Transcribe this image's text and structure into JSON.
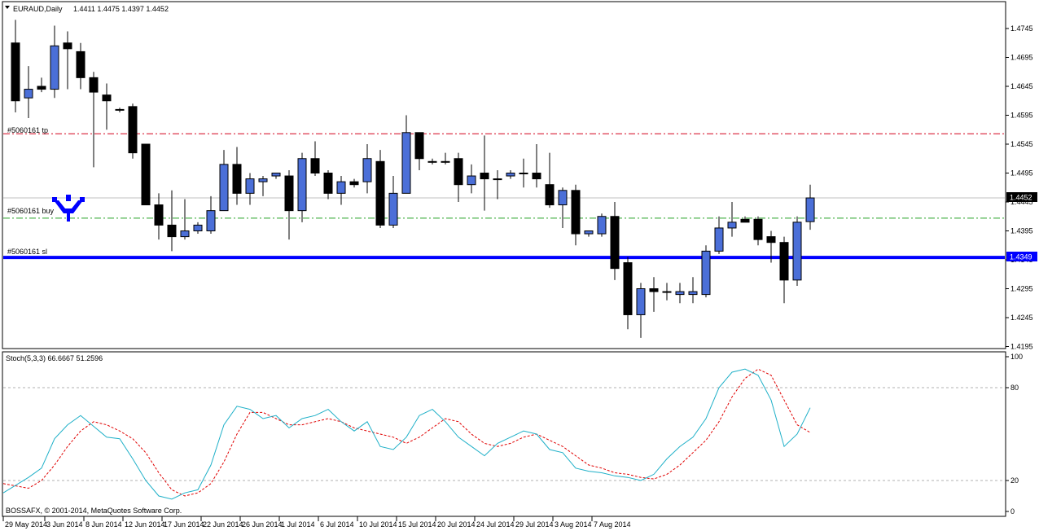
{
  "header": {
    "symbol": "EURAUD,Daily",
    "ohlc": "1.4411 1.4475 1.4397 1.4452"
  },
  "price_axis": {
    "ticks": [
      "1.4745",
      "1.4695",
      "1.4645",
      "1.4595",
      "1.4545",
      "1.4495",
      "1.4445",
      "1.4395",
      "1.4345",
      "1.4295",
      "1.4245",
      "1.4195"
    ],
    "current_price_label": "1.4452",
    "sl_price_label": "1.4349"
  },
  "order_lines": {
    "tp_label": "#5060161 tp",
    "buy_label": "#5060161 buy",
    "sl_label": "#5060161 sl",
    "tp_price": 1.4563,
    "buy_price": 1.4417,
    "sl_price": 1.4349
  },
  "colors": {
    "bull": "#4b6fd8",
    "bear": "#000000",
    "tp_line": "#d4001a",
    "buy_line": "#23a023",
    "sl_line": "#0000ff",
    "stoch_main": "#1fb0c8",
    "stoch_signal": "#e00000"
  },
  "stoch": {
    "label": "Stoch(5,3,3) 66.6667 51.2596",
    "ticks": [
      "100",
      "80",
      "20",
      "0"
    ]
  },
  "footer": {
    "copyright": "BOSSAFX, © 2001-2014, MetaQuotes Software Corp."
  },
  "time_axis": {
    "labels": [
      "29 May 2014",
      "3 Jun 2014",
      "8 Jun 2014",
      "12 Jun 2014",
      "17 Jun 2014",
      "22 Jun 2014",
      "26 Jun 2014",
      "1 Jul 2014",
      "6 Jul 2014",
      "10 Jul 2014",
      "15 Jul 2014",
      "20 Jul 2014",
      "24 Jul 2014",
      "29 Jul 2014",
      "3 Aug 2014",
      "7 Aug 2014"
    ]
  },
  "chart_data": {
    "type": "candlestick",
    "series": [
      {
        "o": 1.472,
        "h": 1.476,
        "l": 1.46,
        "c": 1.462
      },
      {
        "o": 1.4625,
        "h": 1.468,
        "l": 1.459,
        "c": 1.464
      },
      {
        "o": 1.4645,
        "h": 1.466,
        "l": 1.4635,
        "c": 1.464
      },
      {
        "o": 1.464,
        "h": 1.475,
        "l": 1.4625,
        "c": 1.4715
      },
      {
        "o": 1.472,
        "h": 1.474,
        "l": 1.464,
        "c": 1.471
      },
      {
        "o": 1.4705,
        "h": 1.472,
        "l": 1.464,
        "c": 1.466
      },
      {
        "o": 1.466,
        "h": 1.467,
        "l": 1.4505,
        "c": 1.4635
      },
      {
        "o": 1.463,
        "h": 1.465,
        "l": 1.457,
        "c": 1.462
      },
      {
        "o": 1.4605,
        "h": 1.4608,
        "l": 1.46,
        "c": 1.4605
      },
      {
        "o": 1.461,
        "h": 1.4615,
        "l": 1.452,
        "c": 1.453
      },
      {
        "o": 1.4545,
        "h": 1.4545,
        "l": 1.444,
        "c": 1.444
      },
      {
        "o": 1.444,
        "h": 1.446,
        "l": 1.438,
        "c": 1.4405
      },
      {
        "o": 1.4405,
        "h": 1.4465,
        "l": 1.436,
        "c": 1.4385
      },
      {
        "o": 1.4385,
        "h": 1.445,
        "l": 1.438,
        "c": 1.4395
      },
      {
        "o": 1.4395,
        "h": 1.441,
        "l": 1.439,
        "c": 1.4405
      },
      {
        "o": 1.4395,
        "h": 1.4455,
        "l": 1.439,
        "c": 1.443
      },
      {
        "o": 1.443,
        "h": 1.4535,
        "l": 1.443,
        "c": 1.451
      },
      {
        "o": 1.451,
        "h": 1.454,
        "l": 1.444,
        "c": 1.446
      },
      {
        "o": 1.446,
        "h": 1.4495,
        "l": 1.444,
        "c": 1.4485
      },
      {
        "o": 1.448,
        "h": 1.449,
        "l": 1.4455,
        "c": 1.4485
      },
      {
        "o": 1.449,
        "h": 1.4495,
        "l": 1.4485,
        "c": 1.4495
      },
      {
        "o": 1.449,
        "h": 1.45,
        "l": 1.438,
        "c": 1.443
      },
      {
        "o": 1.443,
        "h": 1.453,
        "l": 1.441,
        "c": 1.452
      },
      {
        "o": 1.452,
        "h": 1.455,
        "l": 1.449,
        "c": 1.4495
      },
      {
        "o": 1.4495,
        "h": 1.45,
        "l": 1.445,
        "c": 1.446
      },
      {
        "o": 1.446,
        "h": 1.449,
        "l": 1.444,
        "c": 1.448
      },
      {
        "o": 1.448,
        "h": 1.4485,
        "l": 1.447,
        "c": 1.4475
      },
      {
        "o": 1.448,
        "h": 1.4545,
        "l": 1.446,
        "c": 1.452
      },
      {
        "o": 1.4515,
        "h": 1.4535,
        "l": 1.44,
        "c": 1.4405
      },
      {
        "o": 1.4405,
        "h": 1.449,
        "l": 1.44,
        "c": 1.446
      },
      {
        "o": 1.446,
        "h": 1.4595,
        "l": 1.446,
        "c": 1.4565
      },
      {
        "o": 1.4565,
        "h": 1.4565,
        "l": 1.45,
        "c": 1.452
      },
      {
        "o": 1.4515,
        "h": 1.452,
        "l": 1.451,
        "c": 1.4515
      },
      {
        "o": 1.4515,
        "h": 1.453,
        "l": 1.451,
        "c": 1.4515
      },
      {
        "o": 1.452,
        "h": 1.453,
        "l": 1.4445,
        "c": 1.4475
      },
      {
        "o": 1.4475,
        "h": 1.451,
        "l": 1.446,
        "c": 1.449
      },
      {
        "o": 1.4495,
        "h": 1.456,
        "l": 1.443,
        "c": 1.4485
      },
      {
        "o": 1.4485,
        "h": 1.45,
        "l": 1.445,
        "c": 1.4485
      },
      {
        "o": 1.449,
        "h": 1.45,
        "l": 1.4485,
        "c": 1.4495
      },
      {
        "o": 1.4495,
        "h": 1.452,
        "l": 1.447,
        "c": 1.4495
      },
      {
        "o": 1.4495,
        "h": 1.4545,
        "l": 1.447,
        "c": 1.4485
      },
      {
        "o": 1.4475,
        "h": 1.453,
        "l": 1.4435,
        "c": 1.444
      },
      {
        "o": 1.444,
        "h": 1.447,
        "l": 1.44,
        "c": 1.4465
      },
      {
        "o": 1.4465,
        "h": 1.4475,
        "l": 1.437,
        "c": 1.439
      },
      {
        "o": 1.439,
        "h": 1.4395,
        "l": 1.4385,
        "c": 1.4395
      },
      {
        "o": 1.439,
        "h": 1.4425,
        "l": 1.4385,
        "c": 1.442
      },
      {
        "o": 1.442,
        "h": 1.4445,
        "l": 1.431,
        "c": 1.433
      },
      {
        "o": 1.434,
        "h": 1.435,
        "l": 1.4225,
        "c": 1.425
      },
      {
        "o": 1.425,
        "h": 1.4305,
        "l": 1.421,
        "c": 1.4295
      },
      {
        "o": 1.4295,
        "h": 1.4315,
        "l": 1.4255,
        "c": 1.429
      },
      {
        "o": 1.429,
        "h": 1.4305,
        "l": 1.4275,
        "c": 1.429
      },
      {
        "o": 1.4285,
        "h": 1.4305,
        "l": 1.427,
        "c": 1.429
      },
      {
        "o": 1.4285,
        "h": 1.4315,
        "l": 1.427,
        "c": 1.429
      },
      {
        "o": 1.4285,
        "h": 1.437,
        "l": 1.428,
        "c": 1.436
      },
      {
        "o": 1.436,
        "h": 1.442,
        "l": 1.4355,
        "c": 1.44
      },
      {
        "o": 1.44,
        "h": 1.4445,
        "l": 1.4385,
        "c": 1.441
      },
      {
        "o": 1.4415,
        "h": 1.442,
        "l": 1.441,
        "c": 1.441
      },
      {
        "o": 1.4415,
        "h": 1.442,
        "l": 1.437,
        "c": 1.438
      },
      {
        "o": 1.4385,
        "h": 1.4395,
        "l": 1.434,
        "c": 1.4375
      },
      {
        "o": 1.4375,
        "h": 1.4385,
        "l": 1.427,
        "c": 1.431
      },
      {
        "o": 1.431,
        "h": 1.442,
        "l": 1.43,
        "c": 1.441
      },
      {
        "o": 1.4411,
        "h": 1.4475,
        "l": 1.4397,
        "c": 1.4452
      }
    ],
    "stoch_main": [
      12,
      22,
      28,
      47,
      56,
      62,
      55,
      48,
      47,
      34,
      20,
      10,
      8,
      12,
      14,
      30,
      56,
      68,
      66,
      60,
      62,
      54,
      60,
      62,
      66,
      58,
      52,
      58,
      42,
      40,
      48,
      62,
      66,
      58,
      48,
      42,
      36,
      44,
      48,
      52,
      50,
      40,
      38,
      28,
      26,
      25,
      23,
      22,
      20,
      24,
      34,
      42,
      48,
      60,
      80,
      90,
      92,
      88,
      72,
      42,
      50,
      67
    ],
    "stoch_signal": [
      18,
      15,
      20,
      30,
      42,
      52,
      58,
      56,
      52,
      47,
      38,
      25,
      14,
      10,
      12,
      18,
      32,
      50,
      64,
      64,
      60,
      56,
      56,
      58,
      60,
      58,
      54,
      52,
      50,
      48,
      44,
      48,
      54,
      60,
      58,
      50,
      44,
      42,
      44,
      48,
      50,
      46,
      42,
      36,
      30,
      28,
      25,
      24,
      22,
      21,
      24,
      30,
      38,
      46,
      58,
      74,
      86,
      92,
      88,
      72,
      56,
      51
    ]
  }
}
